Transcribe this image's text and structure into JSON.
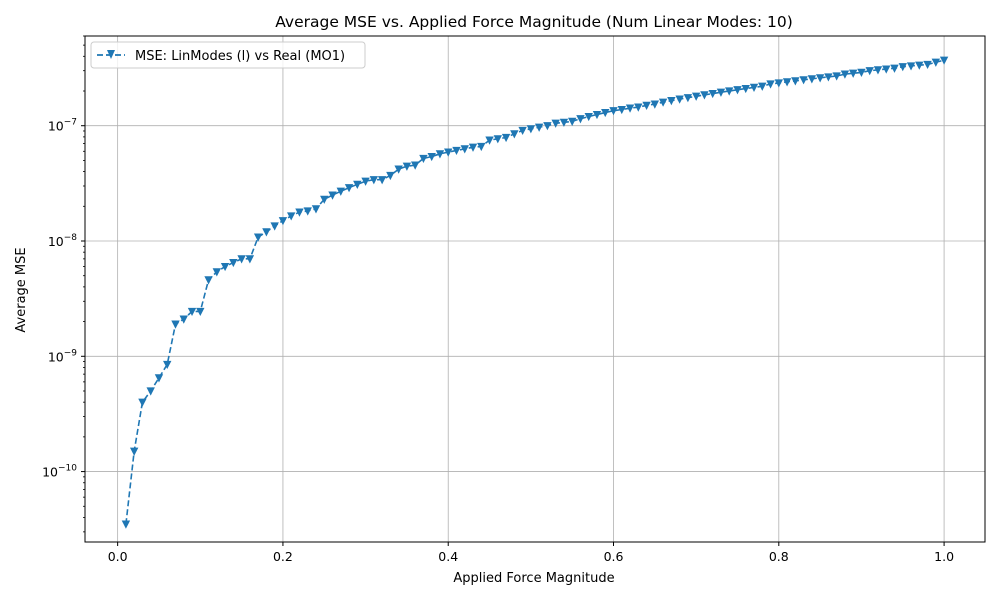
{
  "chart_data": {
    "type": "line",
    "title": "Average MSE vs. Applied Force Magnitude (Num Linear Modes: 10)",
    "xlabel": "Applied Force Magnitude",
    "ylabel": "Average MSE",
    "xlim": [
      -0.0395,
      1.0495
    ],
    "ylim": [
      2.45e-11,
      6e-07
    ],
    "yscale": "log",
    "grid": true,
    "legend_position": "top-left",
    "x_ticks": [
      {
        "value": 0.0,
        "label": "0.0"
      },
      {
        "value": 0.2,
        "label": "0.2"
      },
      {
        "value": 0.4,
        "label": "0.4"
      },
      {
        "value": 0.6,
        "label": "0.6"
      },
      {
        "value": 0.8,
        "label": "0.8"
      },
      {
        "value": 1.0,
        "label": "1.0"
      }
    ],
    "y_ticks": [
      {
        "value": 1e-10,
        "base": "10",
        "exp": "−10"
      },
      {
        "value": 1e-09,
        "base": "10",
        "exp": "−9"
      },
      {
        "value": 1e-08,
        "base": "10",
        "exp": "−8"
      },
      {
        "value": 1e-07,
        "base": "10",
        "exp": "−7"
      }
    ],
    "series": [
      {
        "name": "MSE: LinModes (l) vs Real (MO1)",
        "color": "#1f77b4",
        "linestyle": "dashed",
        "marker": "triangle-down",
        "x": [
          0.01,
          0.02,
          0.03,
          0.04,
          0.05,
          0.06,
          0.07,
          0.08,
          0.09,
          0.1,
          0.11,
          0.12,
          0.13,
          0.14,
          0.15,
          0.16,
          0.17,
          0.18,
          0.19,
          0.2,
          0.21,
          0.22,
          0.23,
          0.24,
          0.25,
          0.26,
          0.27,
          0.28,
          0.29,
          0.3,
          0.31,
          0.32,
          0.33,
          0.34,
          0.35,
          0.36,
          0.37,
          0.38,
          0.39,
          0.4,
          0.41,
          0.42,
          0.43,
          0.44,
          0.45,
          0.46,
          0.47,
          0.48,
          0.49,
          0.5,
          0.51,
          0.52,
          0.53,
          0.54,
          0.55,
          0.56,
          0.57,
          0.58,
          0.59,
          0.6,
          0.61,
          0.62,
          0.63,
          0.64,
          0.65,
          0.66,
          0.67,
          0.68,
          0.69,
          0.7,
          0.71,
          0.72,
          0.73,
          0.74,
          0.75,
          0.76,
          0.77,
          0.78,
          0.79,
          0.8,
          0.81,
          0.82,
          0.83,
          0.84,
          0.85,
          0.86,
          0.87,
          0.88,
          0.89,
          0.9,
          0.91,
          0.92,
          0.93,
          0.94,
          0.95,
          0.96,
          0.97,
          0.98,
          0.99,
          1.0
        ],
        "values": [
          3.5e-11,
          1.5e-10,
          4e-10,
          5e-10,
          6.5e-10,
          8.5e-10,
          1.9e-09,
          2.1e-09,
          2.45e-09,
          2.45e-09,
          4.6e-09,
          5.4e-09,
          6e-09,
          6.5e-09,
          7e-09,
          7e-09,
          1.08e-08,
          1.2e-08,
          1.35e-08,
          1.5e-08,
          1.65e-08,
          1.78e-08,
          1.82e-08,
          1.9e-08,
          2.3e-08,
          2.5e-08,
          2.7e-08,
          2.9e-08,
          3.1e-08,
          3.3e-08,
          3.4e-08,
          3.4e-08,
          3.7e-08,
          4.2e-08,
          4.45e-08,
          4.55e-08,
          5.2e-08,
          5.4e-08,
          5.7e-08,
          5.9e-08,
          6.1e-08,
          6.3e-08,
          6.5e-08,
          6.6e-08,
          7.5e-08,
          7.7e-08,
          7.9e-08,
          8.5e-08,
          9.1e-08,
          9.4e-08,
          9.7e-08,
          1e-07,
          1.05e-07,
          1.07e-07,
          1.09e-07,
          1.15e-07,
          1.2e-07,
          1.25e-07,
          1.3e-07,
          1.35e-07,
          1.38e-07,
          1.42e-07,
          1.45e-07,
          1.5e-07,
          1.54e-07,
          1.6e-07,
          1.65e-07,
          1.7e-07,
          1.75e-07,
          1.8e-07,
          1.85e-07,
          1.9e-07,
          1.95e-07,
          2e-07,
          2.05e-07,
          2.1e-07,
          2.15e-07,
          2.2e-07,
          2.3e-07,
          2.35e-07,
          2.4e-07,
          2.45e-07,
          2.5e-07,
          2.55e-07,
          2.6e-07,
          2.65e-07,
          2.7e-07,
          2.8e-07,
          2.85e-07,
          2.9e-07,
          3e-07,
          3.05e-07,
          3.1e-07,
          3.15e-07,
          3.25e-07,
          3.3e-07,
          3.35e-07,
          3.4e-07,
          3.55e-07,
          3.7e-07
        ]
      }
    ]
  }
}
